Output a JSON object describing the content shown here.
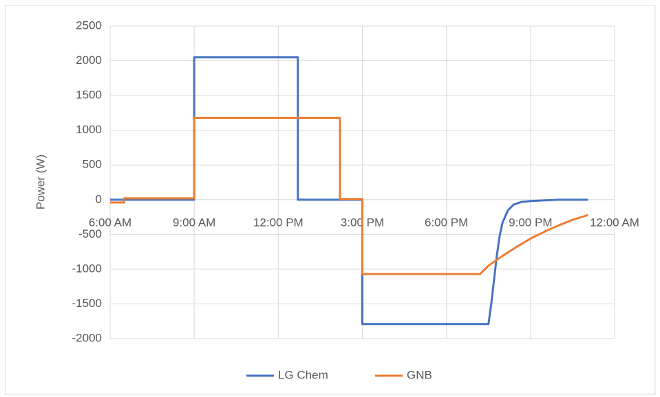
{
  "chart_data": {
    "type": "line",
    "y_label": "Power (W)",
    "xlim": [
      6,
      24
    ],
    "xticks": [
      {
        "value": 6,
        "label": "6:00 AM"
      },
      {
        "value": 9,
        "label": "9:00 AM"
      },
      {
        "value": 12,
        "label": "12:00 PM"
      },
      {
        "value": 15,
        "label": "3:00 PM"
      },
      {
        "value": 18,
        "label": "6:00 PM"
      },
      {
        "value": 21,
        "label": "9:00 PM"
      },
      {
        "value": 24,
        "label": "12:00 AM"
      }
    ],
    "ylim": [
      -2000,
      2500
    ],
    "yticks": [
      -2000,
      -1500,
      -1000,
      -500,
      0,
      500,
      1000,
      1500,
      2000,
      2500
    ],
    "grid": true,
    "legend": "bottom",
    "series": [
      {
        "name": "LG Chem",
        "color": "#4472c4",
        "x": [
          6,
          9,
          9,
          12.7,
          12.7,
          15,
          15,
          19.5,
          19.6,
          19.7,
          19.8,
          19.9,
          20.0,
          20.2,
          20.4,
          20.7,
          21,
          21.5,
          22,
          23.05
        ],
        "values": [
          0,
          0,
          2050,
          2050,
          0,
          0,
          -1790,
          -1790,
          -1500,
          -1150,
          -800,
          -520,
          -330,
          -150,
          -70,
          -30,
          -20,
          -10,
          0,
          0
        ]
      },
      {
        "name": "GNB",
        "color": "#ed7d31",
        "x": [
          6,
          6.5,
          6.5,
          9,
          9,
          14.2,
          14.2,
          15,
          15,
          19.2,
          19.5,
          20,
          20.5,
          21,
          21.5,
          22,
          22.5,
          23.05
        ],
        "values": [
          -40,
          -40,
          20,
          20,
          1180,
          1180,
          10,
          10,
          -1070,
          -1070,
          -950,
          -810,
          -680,
          -560,
          -460,
          -370,
          -290,
          -220
        ]
      }
    ]
  }
}
